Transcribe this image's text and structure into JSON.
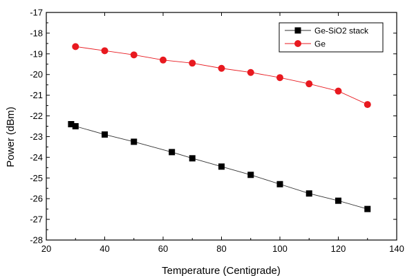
{
  "chart_data": {
    "type": "line",
    "title": "",
    "xlabel": "Temperature (Centigrade)",
    "ylabel": "Power (dBm)",
    "xlim": [
      20,
      140
    ],
    "ylim": [
      -28,
      -17
    ],
    "xticks": [
      20,
      40,
      60,
      80,
      100,
      120,
      140
    ],
    "yticks": [
      -17,
      -18,
      -19,
      -20,
      -21,
      -22,
      -23,
      -24,
      -25,
      -26,
      -27,
      -28
    ],
    "grid": false,
    "legend_position": "top-right",
    "series": [
      {
        "name": "Ge-SiO2 stack",
        "marker": "square",
        "color": "#000000",
        "line_color": "#333333",
        "x": [
          28.5,
          30,
          40,
          50,
          63,
          70,
          80,
          90,
          100,
          110,
          120,
          130
        ],
        "y": [
          -22.4,
          -22.5,
          -22.9,
          -23.25,
          -23.75,
          -24.05,
          -24.45,
          -24.85,
          -25.3,
          -25.75,
          -26.1,
          -26.5
        ]
      },
      {
        "name": "Ge",
        "marker": "circle",
        "color": "#e8191f",
        "line_color": "#e8191f",
        "x": [
          30,
          40,
          50,
          60,
          70,
          80,
          90,
          100,
          110,
          120,
          130
        ],
        "y": [
          -18.65,
          -18.85,
          -19.05,
          -19.3,
          -19.45,
          -19.7,
          -19.9,
          -20.15,
          -20.45,
          -20.8,
          -21.45
        ]
      }
    ]
  }
}
